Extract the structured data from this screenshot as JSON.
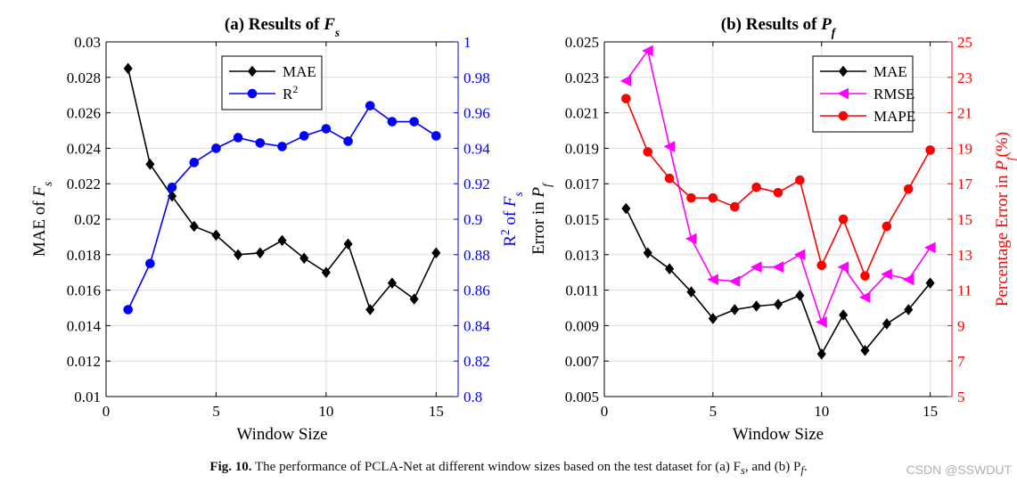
{
  "figure": {
    "caption_label": "Fig. 10.",
    "caption_text": "The performance of PCLA-Net at different window sizes based on the test dataset for (a) F",
    "caption_sub1": "s",
    "caption_mid": ", and (b) P",
    "caption_sub2": "f",
    "caption_end": ".",
    "watermark": "CSDN @SSWDUT"
  },
  "chart_data": [
    {
      "type": "line",
      "title": "(a) Results of",
      "title_var": "F",
      "title_sub": "s",
      "xlabel": "Window Size",
      "ylabel": "MAE of",
      "ylabel_var": "F",
      "ylabel_sub": "s",
      "y2label": "R",
      "y2label_sup": "2",
      "y2label_mid": " of ",
      "y2label_var": "F",
      "y2label_sub": "s",
      "xlim": [
        0,
        16
      ],
      "xticks": [
        0,
        5,
        10,
        15
      ],
      "ylim": [
        0.01,
        0.03
      ],
      "yticks": [
        "0.01",
        "0.012",
        "0.014",
        "0.016",
        "0.018",
        "0.02",
        "0.022",
        "0.024",
        "0.026",
        "0.028",
        "0.03"
      ],
      "y2lim": [
        0.8,
        1.0
      ],
      "y2ticks": [
        "0.8",
        "0.82",
        "0.84",
        "0.86",
        "0.88",
        "0.9",
        "0.92",
        "0.94",
        "0.96",
        "0.98",
        "1"
      ],
      "legend_loc": "top-center",
      "grid": true,
      "series": [
        {
          "name": "MAE",
          "axis": "left",
          "color": "#000000",
          "marker": "diamond",
          "x": [
            1,
            2,
            3,
            4,
            5,
            6,
            7,
            8,
            9,
            10,
            11,
            12,
            13,
            14,
            15
          ],
          "values": [
            0.0285,
            0.0231,
            0.0213,
            0.0196,
            0.0191,
            0.018,
            0.0181,
            0.0188,
            0.0178,
            0.017,
            0.0186,
            0.0149,
            0.0164,
            0.0155,
            0.0181
          ]
        },
        {
          "name": "R",
          "name_sup": "2",
          "axis": "right",
          "color": "#0000ff",
          "marker": "circle",
          "x": [
            1,
            2,
            3,
            4,
            5,
            6,
            7,
            8,
            9,
            10,
            11,
            12,
            13,
            14,
            15
          ],
          "values": [
            0.849,
            0.875,
            0.918,
            0.932,
            0.94,
            0.946,
            0.943,
            0.941,
            0.947,
            0.951,
            0.944,
            0.964,
            0.955,
            0.955,
            0.947
          ]
        }
      ]
    },
    {
      "type": "line",
      "title": "(b) Results of",
      "title_var": "P",
      "title_sub": "f",
      "xlabel": "Window Size",
      "ylabel": "Error in",
      "ylabel_var": "P",
      "ylabel_sub": "f",
      "y2label": "Percentage Error in",
      "y2label_var": "P",
      "y2label_sub": "f",
      "y2label_end": "(%)",
      "xlim": [
        0,
        16
      ],
      "xticks": [
        0,
        5,
        10,
        15
      ],
      "ylim": [
        0.005,
        0.025
      ],
      "yticks": [
        "0.005",
        "0.007",
        "0.009",
        "0.011",
        "0.013",
        "0.015",
        "0.017",
        "0.019",
        "0.021",
        "0.023",
        "0.025"
      ],
      "y2lim": [
        5,
        25
      ],
      "y2ticks": [
        "5",
        "7",
        "9",
        "11",
        "13",
        "15",
        "17",
        "19",
        "21",
        "23",
        "25"
      ],
      "legend_loc": "top-right",
      "grid": true,
      "series": [
        {
          "name": "MAE",
          "axis": "left",
          "color": "#000000",
          "marker": "diamond",
          "x": [
            1,
            2,
            3,
            4,
            5,
            6,
            7,
            8,
            9,
            10,
            11,
            12,
            13,
            14,
            15
          ],
          "values": [
            0.0156,
            0.0131,
            0.0122,
            0.0109,
            0.0094,
            0.0099,
            0.0101,
            0.0102,
            0.0107,
            0.0074,
            0.0096,
            0.0076,
            0.0091,
            0.0099,
            0.0114
          ]
        },
        {
          "name": "RMSE",
          "axis": "left",
          "color": "#ff00ff",
          "marker": "triangle-left",
          "x": [
            1,
            2,
            3,
            4,
            5,
            6,
            7,
            8,
            9,
            10,
            11,
            12,
            13,
            14,
            15
          ],
          "values": [
            0.0228,
            0.0245,
            0.0191,
            0.0139,
            0.0116,
            0.0115,
            0.0123,
            0.0123,
            0.013,
            0.0092,
            0.0123,
            0.0106,
            0.0119,
            0.0116,
            0.0134
          ]
        },
        {
          "name": "MAPE",
          "axis": "right",
          "color": "#ff0000",
          "marker": "circle",
          "x": [
            1,
            2,
            3,
            4,
            5,
            6,
            7,
            8,
            9,
            10,
            11,
            12,
            13,
            14,
            15
          ],
          "values": [
            21.8,
            18.8,
            17.3,
            16.2,
            16.2,
            15.7,
            16.8,
            16.5,
            17.2,
            12.4,
            15.0,
            11.8,
            14.6,
            16.7,
            18.9
          ]
        }
      ]
    }
  ]
}
